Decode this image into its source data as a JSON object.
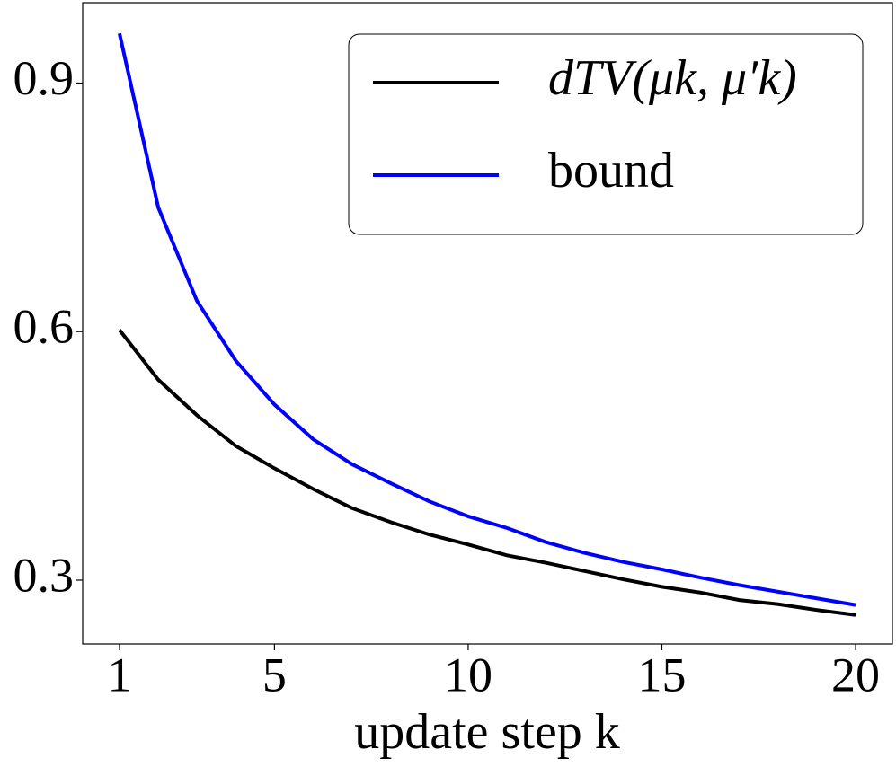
{
  "chart_data": {
    "type": "line",
    "x_label": "update step k",
    "x": [
      1,
      2,
      3,
      4,
      5,
      6,
      7,
      8,
      9,
      10,
      11,
      12,
      13,
      14,
      15,
      16,
      17,
      18,
      19,
      20
    ],
    "xlim": [
      0.05,
      20.95
    ],
    "xticks": [
      1,
      5,
      10,
      15,
      20
    ],
    "ylim": [
      0.223,
      0.997
    ],
    "yticks": [
      {
        "value": 0.3,
        "label": "0.3"
      },
      {
        "value": 0.6,
        "label": "0.6"
      },
      {
        "value": 0.9,
        "label": "0.9"
      }
    ],
    "legend": "upper right",
    "series": [
      {
        "name": "dTV(μk, μ′k)",
        "color": "#000000",
        "values": [
          0.602,
          0.542,
          0.499,
          0.462,
          0.435,
          0.41,
          0.387,
          0.37,
          0.355,
          0.343,
          0.33,
          0.321,
          0.311,
          0.301,
          0.292,
          0.285,
          0.276,
          0.271,
          0.264,
          0.258
        ]
      },
      {
        "name": "bound",
        "color": "#0000ff",
        "values": [
          0.96,
          0.75,
          0.637,
          0.565,
          0.512,
          0.47,
          0.44,
          0.417,
          0.395,
          0.377,
          0.363,
          0.346,
          0.333,
          0.322,
          0.313,
          0.303,
          0.294,
          0.286,
          0.278,
          0.27
        ]
      }
    ]
  }
}
